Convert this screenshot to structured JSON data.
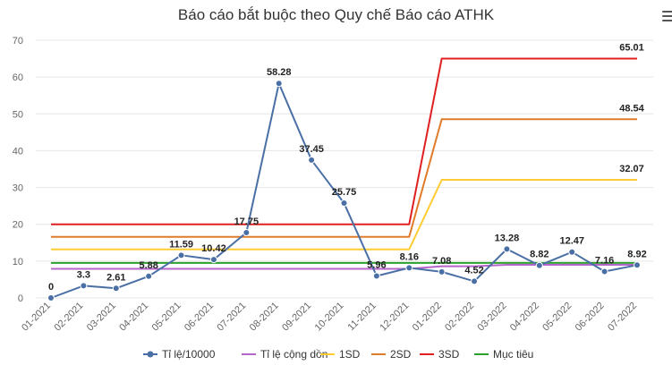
{
  "title": "Báo cáo bắt buộc theo Quy chế Báo cáo ATHK",
  "menu_icon": "hamburger-menu-icon",
  "chart_data": {
    "type": "line",
    "title": "Báo cáo bắt buộc theo Quy chế Báo cáo ATHK",
    "categories": [
      "01-2021",
      "02-2021",
      "03-2021",
      "04-2021",
      "05-2021",
      "06-2021",
      "07-2021",
      "08-2021",
      "09-2021",
      "10-2021",
      "11-2021",
      "12-2021",
      "01-2022",
      "02-2022",
      "03-2022",
      "04-2022",
      "05-2022",
      "06-2022",
      "07-2022"
    ],
    "ylim": [
      0,
      70
    ],
    "yticks": [
      0,
      10,
      20,
      30,
      40,
      50,
      60,
      70
    ],
    "grid": true,
    "legend_position": "bottom",
    "series": [
      {
        "name": "Tỉ lệ/10000",
        "color": "#4a6fa5",
        "markers": true,
        "labels": true,
        "values": [
          0,
          3.3,
          2.61,
          5.88,
          11.59,
          10.42,
          17.75,
          58.28,
          37.45,
          25.75,
          5.96,
          8.16,
          7.08,
          4.52,
          13.28,
          8.82,
          12.47,
          7.16,
          8.92
        ]
      },
      {
        "name": "Tỉ lệ cộng dồn",
        "color": "#b565c9",
        "values": [
          7.9,
          7.9,
          7.9,
          7.9,
          7.9,
          7.9,
          7.9,
          7.9,
          7.9,
          7.9,
          7.9,
          7.9,
          8.6,
          8.6,
          9.0,
          9.0,
          9.0,
          9.0,
          9.0
        ]
      },
      {
        "name": "1SD",
        "color": "#ffcc33",
        "end_label": "32.07",
        "values": [
          13.2,
          13.2,
          13.2,
          13.2,
          13.2,
          13.2,
          13.2,
          13.2,
          13.2,
          13.2,
          13.2,
          13.2,
          32.07,
          32.07,
          32.07,
          32.07,
          32.07,
          32.07,
          32.07
        ]
      },
      {
        "name": "2SD",
        "color": "#e07b2a",
        "end_label": "48.54",
        "values": [
          16.6,
          16.6,
          16.6,
          16.6,
          16.6,
          16.6,
          16.6,
          16.6,
          16.6,
          16.6,
          16.6,
          16.6,
          48.54,
          48.54,
          48.54,
          48.54,
          48.54,
          48.54,
          48.54
        ]
      },
      {
        "name": "3SD",
        "color": "#e02020",
        "end_label": "65.01",
        "values": [
          20,
          20,
          20,
          20,
          20,
          20,
          20,
          20,
          20,
          20,
          20,
          20,
          65.01,
          65.01,
          65.01,
          65.01,
          65.01,
          65.01,
          65.01
        ]
      },
      {
        "name": "Mục tiêu",
        "color": "#2ca02c",
        "values": [
          9.5,
          9.5,
          9.5,
          9.5,
          9.5,
          9.5,
          9.5,
          9.5,
          9.5,
          9.5,
          9.5,
          9.5,
          9.5,
          9.5,
          9.5,
          9.5,
          9.5,
          9.5,
          9.5
        ]
      }
    ]
  }
}
